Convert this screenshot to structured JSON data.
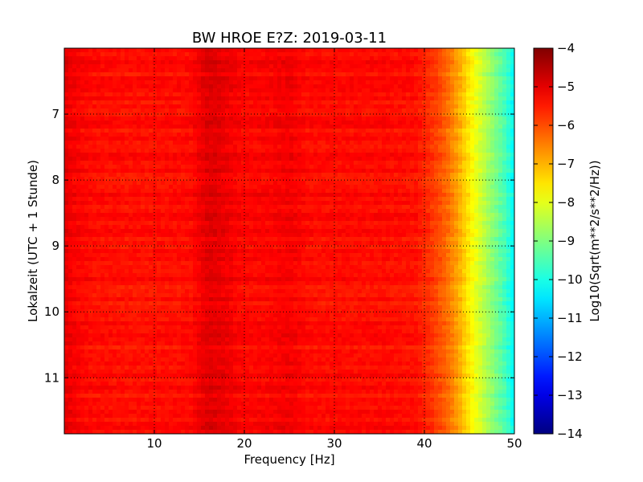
{
  "chart_data": {
    "type": "heatmap",
    "title": "BW HROE E?Z: 2019-03-11",
    "xlabel": "Frequency [Hz]",
    "ylabel": "Lokalzeit (UTC + 1 Stunde)",
    "xlim": [
      0,
      50
    ],
    "ylim": [
      11.85,
      6.0
    ],
    "x_ticks": [
      10,
      20,
      30,
      40,
      50
    ],
    "y_ticks": [
      7,
      8,
      9,
      10,
      11
    ],
    "grid": true,
    "colorbar": {
      "label": "Log10(Sqrt(m**2/s**2/Hz))",
      "colormap": "jet",
      "range": [
        -14,
        -4
      ],
      "ticks": [
        -4,
        -5,
        -6,
        -7,
        -8,
        -9,
        -10,
        -11,
        -12,
        -13,
        -14
      ]
    },
    "spectrum_profile": {
      "frequency_hz": [
        0,
        1,
        3,
        8,
        14,
        16,
        17,
        20,
        23,
        25,
        27,
        30,
        35,
        39,
        41,
        42,
        43,
        44,
        45,
        46,
        47,
        48,
        49,
        50
      ],
      "log10_amplitude": [
        -5.0,
        -5.2,
        -5.35,
        -5.4,
        -5.35,
        -4.95,
        -5.0,
        -5.3,
        -5.25,
        -5.15,
        -5.35,
        -5.35,
        -5.35,
        -5.4,
        -5.8,
        -6.1,
        -6.5,
        -7.0,
        -7.6,
        -8.1,
        -8.6,
        -9.1,
        -9.6,
        -10.3
      ]
    },
    "colors": {
      "axes_edge": "#000000",
      "grid": "#000000",
      "background": "#ffffff"
    }
  }
}
